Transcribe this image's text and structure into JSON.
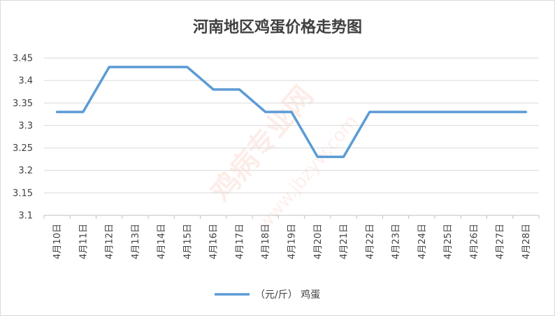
{
  "chart_data": {
    "type": "line",
    "title": "河南地区鸡蛋价格走势图",
    "categories": [
      "4月10日",
      "4月11日",
      "4月12日",
      "4月13日",
      "4月14日",
      "4月15日",
      "4月16日",
      "4月17日",
      "4月18日",
      "4月19日",
      "4月20日",
      "4月21日",
      "4月22日",
      "4月23日",
      "4月24日",
      "4月25日",
      "4月26日",
      "4月27日",
      "4月28日"
    ],
    "series": [
      {
        "name": "（元/斤）  鸡蛋",
        "color": "#5b9bd5",
        "values": [
          3.33,
          3.33,
          3.43,
          3.43,
          3.43,
          3.43,
          3.38,
          3.38,
          3.33,
          3.33,
          3.23,
          3.23,
          3.33,
          3.33,
          3.33,
          3.33,
          3.33,
          3.33,
          3.33
        ]
      }
    ],
    "ylim": [
      3.1,
      3.45
    ],
    "yticks": [
      "3.1",
      "3.15",
      "3.2",
      "3.25",
      "3.3",
      "3.35",
      "3.4",
      "3.45"
    ],
    "xlabel": "",
    "ylabel": "",
    "grid": true,
    "legend": "bottom"
  },
  "watermark": {
    "brand": "鸡病专业网",
    "url": "www.jbzyw.com"
  }
}
